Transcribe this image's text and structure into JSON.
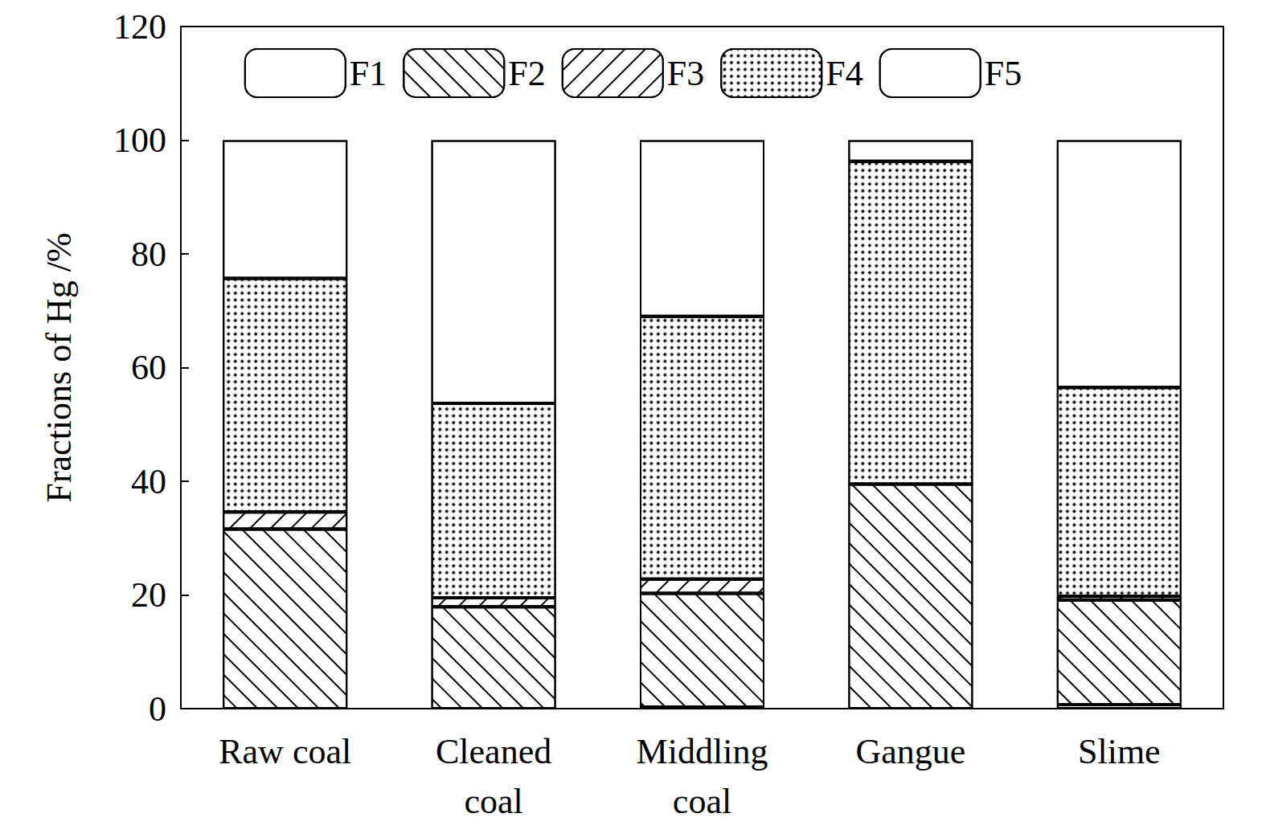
{
  "chart_data": {
    "type": "bar",
    "stacked": true,
    "categories": [
      "Raw coal",
      "Cleaned\ncoal",
      "Middling\ncoal",
      "Gangue",
      "Slime"
    ],
    "y_label": "Fractions of Hg /%",
    "ylim": [
      0,
      120
    ],
    "yticks": [
      0,
      20,
      40,
      60,
      80,
      100,
      120
    ],
    "legend": "top",
    "grid": false,
    "series": [
      {
        "name": "F1",
        "color": "#ffffff",
        "values": [
          0,
          0,
          0.3,
          0,
          0.7
        ]
      },
      {
        "name": "F2",
        "color": "#ffffff",
        "values": [
          31.6,
          17.9,
          20.0,
          39.5,
          18.4
        ]
      },
      {
        "name": "F3",
        "color": "#ffffff",
        "values": [
          3.0,
          1.6,
          2.5,
          0,
          0.7
        ]
      },
      {
        "name": "F4",
        "color": "#ffffff",
        "values": [
          41.1,
          34.2,
          46.2,
          56.8,
          36.7
        ]
      },
      {
        "name": "F5",
        "color": "#ffffff",
        "values": [
          24.3,
          46.3,
          31.0,
          3.7,
          43.5
        ]
      }
    ]
  }
}
